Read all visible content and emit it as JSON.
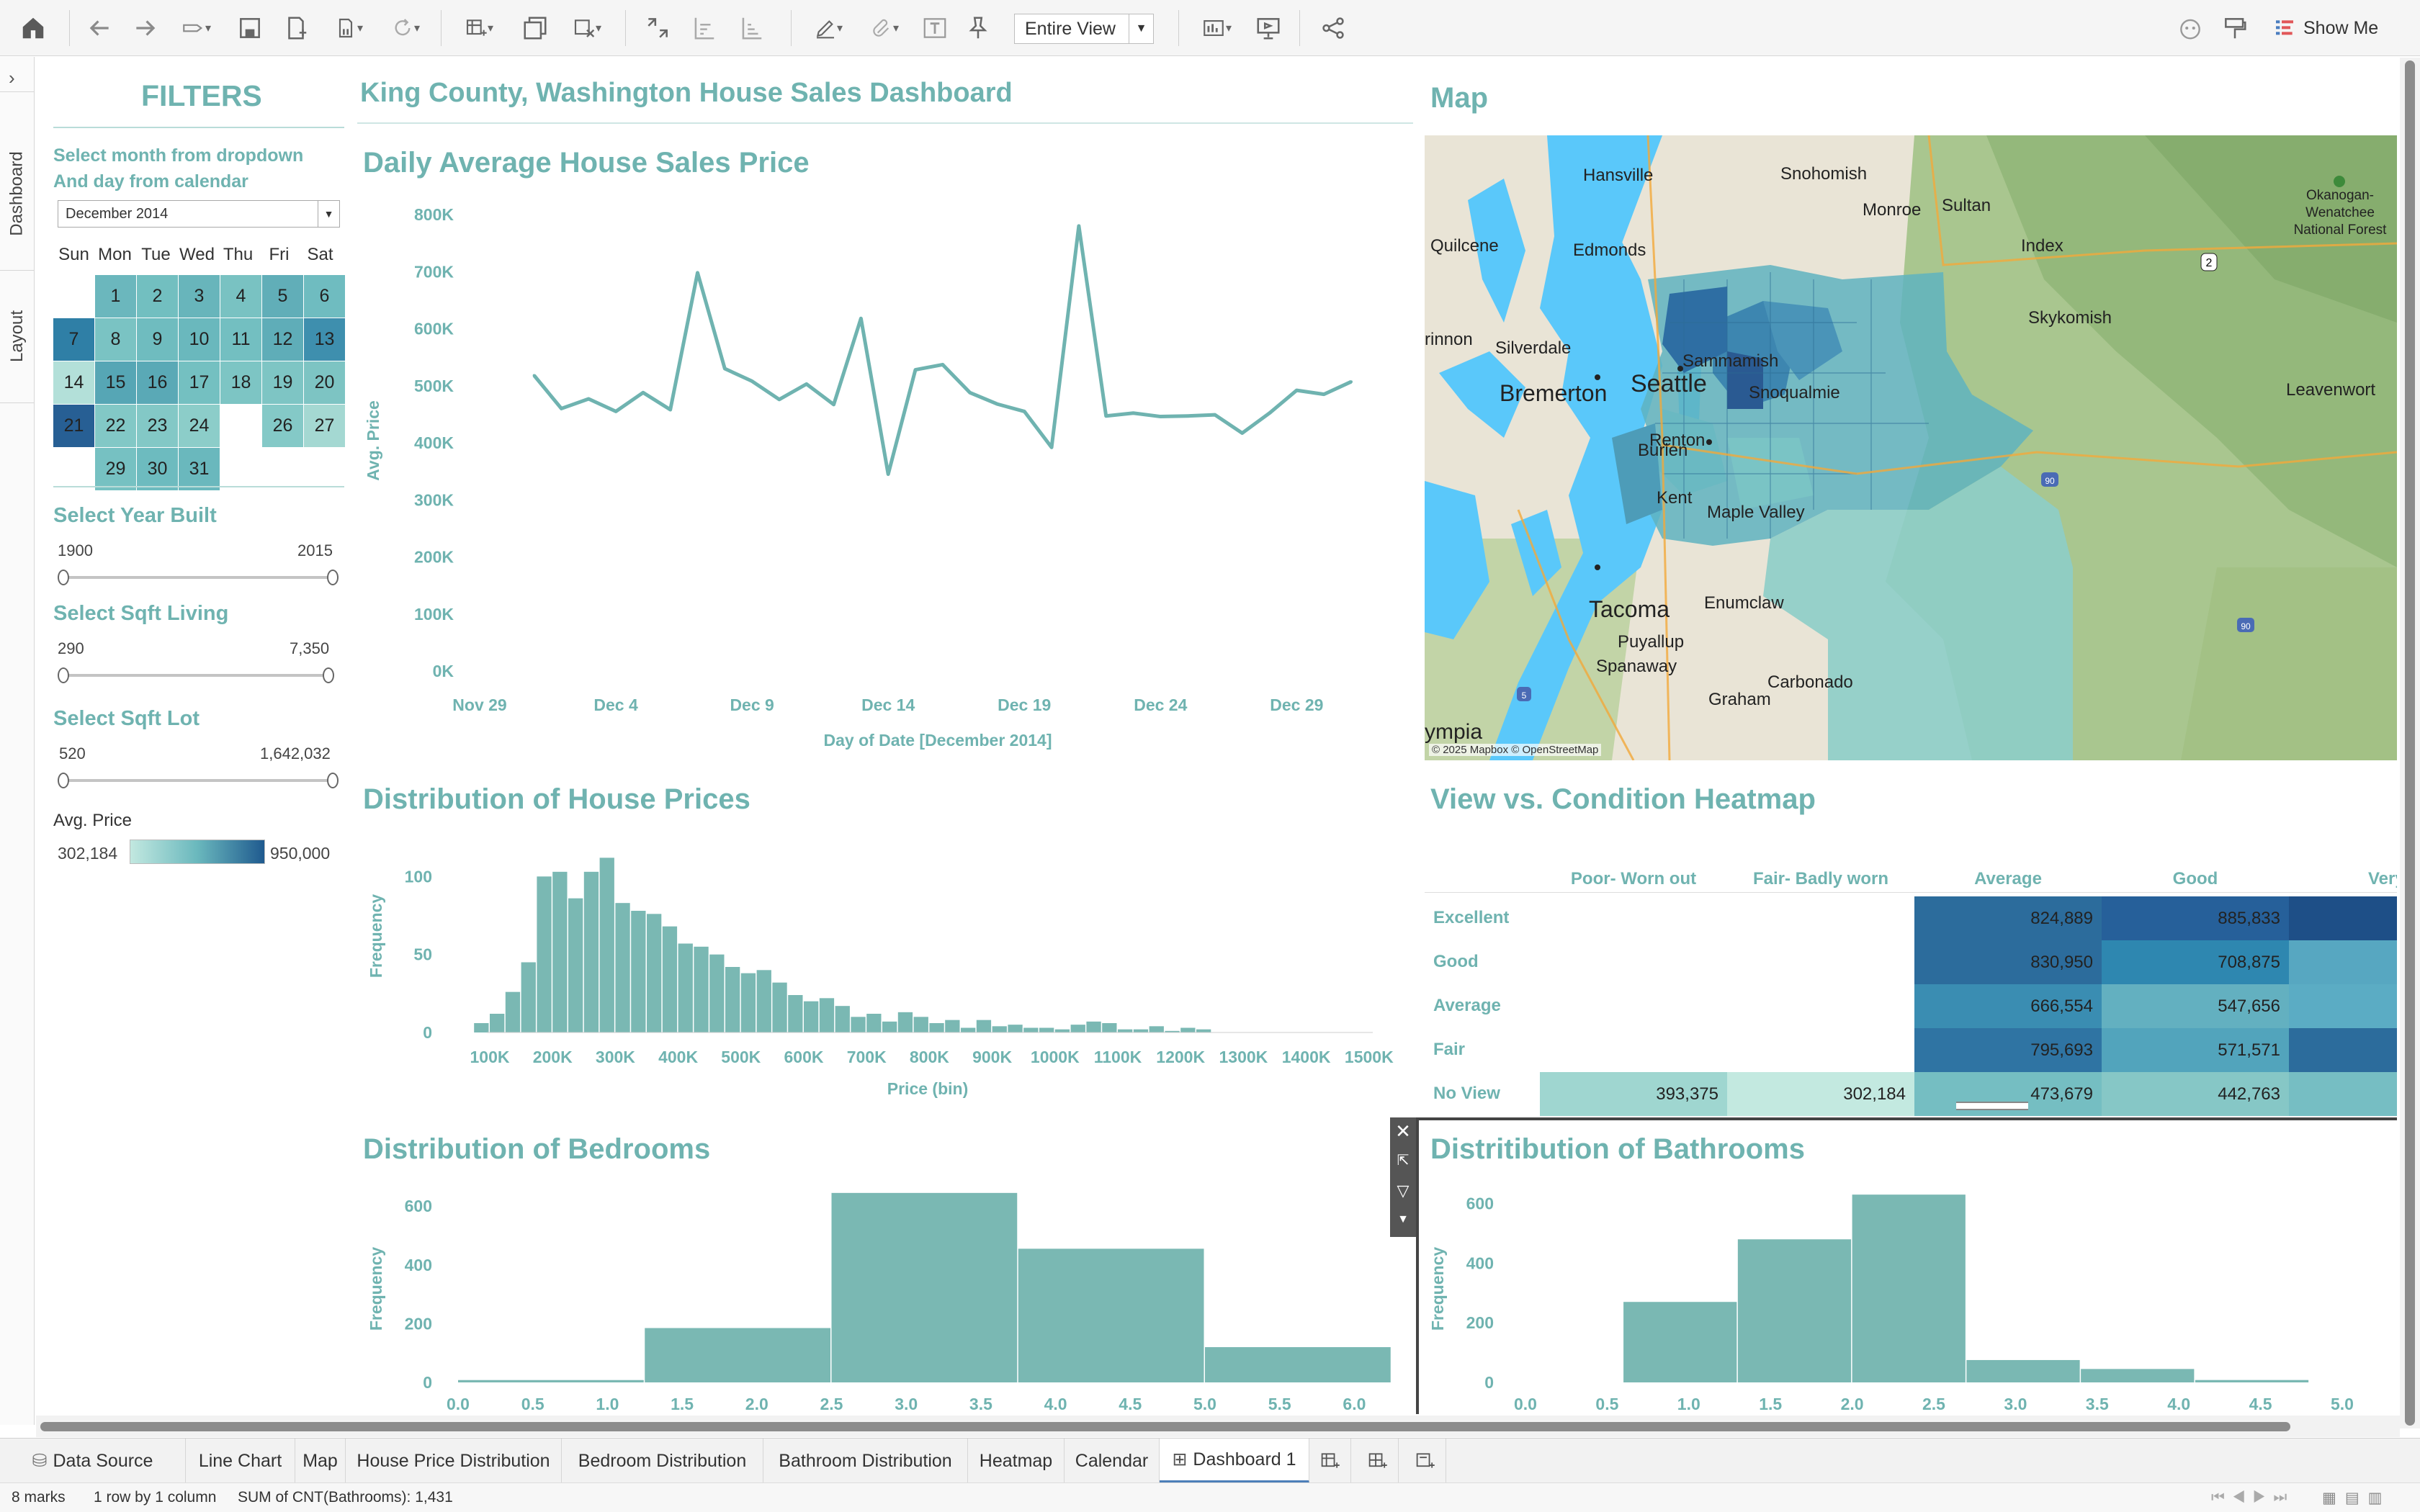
{
  "toolbar": {
    "view_select": "Entire View",
    "show_me": "Show Me"
  },
  "rail": {
    "tabs": [
      "Dashboard",
      "Layout"
    ]
  },
  "filters": {
    "title": "FILTERS",
    "instructions": [
      "Select month from dropdown",
      "And day from calendar"
    ],
    "month_value": "December 2014",
    "calendar": {
      "weekdays": [
        "Sun",
        "Mon",
        "Tue",
        "Wed",
        "Thu",
        "Fri",
        "Sat"
      ],
      "days": [
        {
          "d": "1",
          "col": 1,
          "row": 0,
          "c": "#6bb7bd"
        },
        {
          "d": "2",
          "col": 2,
          "row": 0,
          "c": "#72bfc0"
        },
        {
          "d": "3",
          "col": 3,
          "row": 0,
          "c": "#68b5bb"
        },
        {
          "d": "4",
          "col": 4,
          "row": 0,
          "c": "#79c2c2"
        },
        {
          "d": "5",
          "col": 5,
          "row": 0,
          "c": "#61aeb8"
        },
        {
          "d": "6",
          "col": 6,
          "row": 0,
          "c": "#6fbcc0"
        },
        {
          "d": "7",
          "col": 0,
          "row": 1,
          "c": "#2f7fa6"
        },
        {
          "d": "8",
          "col": 1,
          "row": 1,
          "c": "#7ac3c3"
        },
        {
          "d": "9",
          "col": 2,
          "row": 1,
          "c": "#6fbcbf"
        },
        {
          "d": "10",
          "col": 3,
          "row": 1,
          "c": "#6ab8bd"
        },
        {
          "d": "11",
          "col": 4,
          "row": 1,
          "c": "#73bfc1"
        },
        {
          "d": "12",
          "col": 5,
          "row": 1,
          "c": "#5fadb8"
        },
        {
          "d": "13",
          "col": 6,
          "row": 1,
          "c": "#3e8fae"
        },
        {
          "d": "14",
          "col": 0,
          "row": 2,
          "c": "#b3e0d9"
        },
        {
          "d": "15",
          "col": 1,
          "row": 2,
          "c": "#56a6b5"
        },
        {
          "d": "16",
          "col": 2,
          "row": 2,
          "c": "#5aa9b6"
        },
        {
          "d": "17",
          "col": 3,
          "row": 2,
          "c": "#74c0c1"
        },
        {
          "d": "18",
          "col": 4,
          "row": 2,
          "c": "#7dc5c4"
        },
        {
          "d": "19",
          "col": 5,
          "row": 2,
          "c": "#7ec5c4"
        },
        {
          "d": "20",
          "col": 6,
          "row": 2,
          "c": "#7dc4c3"
        },
        {
          "d": "21",
          "col": 0,
          "row": 3,
          "c": "#275f94"
        },
        {
          "d": "22",
          "col": 1,
          "row": 3,
          "c": "#82c8c6"
        },
        {
          "d": "23",
          "col": 2,
          "row": 3,
          "c": "#83c8c6"
        },
        {
          "d": "24",
          "col": 3,
          "row": 3,
          "c": "#8ccdc9"
        },
        {
          "d": "26",
          "col": 5,
          "row": 3,
          "c": "#84c9c7"
        },
        {
          "d": "27",
          "col": 6,
          "row": 3,
          "c": "#a4d8d2"
        },
        {
          "d": "29",
          "col": 1,
          "row": 4,
          "c": "#76c1c2"
        },
        {
          "d": "30",
          "col": 2,
          "row": 4,
          "c": "#6dbbbf"
        },
        {
          "d": "31",
          "col": 3,
          "row": 4,
          "c": "#6ab8bd"
        }
      ]
    },
    "year_built": {
      "label": "Select Year Built",
      "min": "1900",
      "max": "2015"
    },
    "sqft_living": {
      "label": "Select Sqft Living",
      "min": "290",
      "max": "7,350"
    },
    "sqft_lot": {
      "label": "Select Sqft Lot",
      "min": "520",
      "max": "1,642,032"
    },
    "legend": {
      "label": "Avg. Price",
      "min": "302,184",
      "max": "950,000",
      "color_low": "#c2e8e0",
      "color_high": "#1f5a8f"
    }
  },
  "dashboard_title": "King County, Washington House Sales Dashboard",
  "line_chart": {
    "title": "Daily Average House Sales Price",
    "chart_data": {
      "type": "line",
      "ylabel": "Avg. Price",
      "xlabel": "Day of Date [December 2014]",
      "ylim": [
        0,
        800000
      ],
      "yticks": [
        "0K",
        "100K",
        "200K",
        "300K",
        "400K",
        "500K",
        "600K",
        "700K",
        "800K"
      ],
      "xticks": [
        "Nov 29",
        "Dec 4",
        "Dec 9",
        "Dec 14",
        "Dec 19",
        "Dec 24",
        "Dec 29"
      ],
      "x": [
        "Dec 1",
        "Dec 2",
        "Dec 3",
        "Dec 4",
        "Dec 5",
        "Dec 6",
        "Dec 7",
        "Dec 8",
        "Dec 9",
        "Dec 10",
        "Dec 11",
        "Dec 12",
        "Dec 13",
        "Dec 14",
        "Dec 15",
        "Dec 16",
        "Dec 17",
        "Dec 18",
        "Dec 19",
        "Dec 20",
        "Dec 21",
        "Dec 22",
        "Dec 23",
        "Dec 24",
        "Dec 25",
        "Dec 26",
        "Dec 27",
        "Dec 28",
        "Dec 29",
        "Dec 30",
        "Dec 31"
      ],
      "values": [
        518000,
        460000,
        477000,
        455000,
        488000,
        458000,
        698000,
        530000,
        508000,
        476000,
        503000,
        467000,
        618000,
        345000,
        528000,
        537000,
        488000,
        468000,
        455000,
        392000,
        780000,
        447000,
        452000,
        446000,
        447000,
        449000,
        417000,
        452000,
        492000,
        485000,
        507000
      ],
      "color": "#6fb3b0"
    }
  },
  "map": {
    "title": "Map",
    "labels": [
      "Hansville",
      "Snohomish",
      "Monroe",
      "Sultan",
      "Index",
      "Quilcene",
      "Edmonds",
      "Skykomish",
      "rinnon",
      "Silverdale",
      "Bremerton",
      "Seattle",
      "Sammamish",
      "Snoqualmie",
      "Leavenwort",
      "Burien",
      "Renton",
      "Kent",
      "Maple Valley",
      "Tacoma",
      "Puyallup",
      "Enumclaw",
      "Spanaway",
      "Carbonado",
      "Graham",
      "ympia",
      "Okanogan-Wenatchee National Forest"
    ],
    "attribution": "© 2025 Mapbox © OpenStreetMap"
  },
  "price_hist": {
    "title": "Distribution of House Prices",
    "chart_data": {
      "type": "bar",
      "ylabel": "Frequency",
      "xlabel": "Price (bin)",
      "ylim": [
        0,
        120
      ],
      "yticks": [
        "0",
        "50",
        "100"
      ],
      "xticks": [
        "100K",
        "200K",
        "300K",
        "400K",
        "500K",
        "600K",
        "700K",
        "800K",
        "900K",
        "1000K",
        "1100K",
        "1200K",
        "1300K",
        "1400K",
        "1500K"
      ],
      "bin_start": 75000,
      "bin_width": 25000,
      "values": [
        6,
        12,
        26,
        45,
        100,
        103,
        86,
        103,
        112,
        83,
        78,
        76,
        68,
        57,
        55,
        50,
        42,
        38,
        40,
        32,
        24,
        20,
        22,
        17,
        10,
        12,
        7,
        13,
        10,
        6,
        8,
        3,
        8,
        4,
        5,
        3,
        3,
        2,
        5,
        7,
        6,
        2,
        2,
        4,
        1,
        3,
        2
      ],
      "color": "#7ab8b3"
    }
  },
  "heatmap": {
    "title": "View vs. Condition Heatmap",
    "chart_data": {
      "type": "heatmap",
      "columns": [
        "Poor- Worn out",
        "Fair- Badly worn",
        "Average",
        "Good",
        "Very G"
      ],
      "rows": [
        "Excellent",
        "Good",
        "Average",
        "Fair",
        "No View"
      ],
      "cells": [
        [
          null,
          null,
          {
            "v": "824,889",
            "c": "#2c6c9c"
          },
          {
            "v": "885,833",
            "c": "#26609a"
          },
          {
            "v": "",
            "c": "#1e4f87"
          }
        ],
        [
          null,
          null,
          {
            "v": "830,950",
            "c": "#2c6c9c"
          },
          {
            "v": "708,875",
            "c": "#2e87b0"
          },
          {
            "v": "",
            "c": "#57a7c1"
          }
        ],
        [
          null,
          null,
          {
            "v": "666,554",
            "c": "#3a8db2"
          },
          {
            "v": "547,656",
            "c": "#63b0c0"
          },
          {
            "v": "",
            "c": "#5bacc4"
          }
        ],
        [
          null,
          null,
          {
            "v": "795,693",
            "c": "#2f74a3"
          },
          {
            "v": "571,571",
            "c": "#52a4bc"
          },
          {
            "v": "",
            "c": "#2c6c9c"
          }
        ],
        [
          {
            "v": "393,375",
            "c": "#9fd6d0"
          },
          {
            "v": "302,184",
            "c": "#c3e9e0"
          },
          {
            "v": "473,679",
            "c": "#75bec2"
          },
          {
            "v": "442,763",
            "c": "#86c7c6"
          },
          {
            "v": "",
            "c": "#76bec3"
          }
        ]
      ]
    }
  },
  "bedrooms": {
    "title": "Distribution of Bedrooms",
    "chart_data": {
      "type": "bar",
      "ylabel": "Frequency",
      "ylim": [
        0,
        700
      ],
      "yticks": [
        "0",
        "200",
        "400",
        "600"
      ],
      "xticks": [
        "0.0",
        "0.5",
        "1.0",
        "1.5",
        "2.0",
        "2.5",
        "3.0",
        "3.5",
        "4.0",
        "4.5",
        "5.0",
        "5.5",
        "6.0"
      ],
      "bins": [
        [
          0,
          1.25,
          8
        ],
        [
          1.25,
          2.5,
          185
        ],
        [
          2.5,
          3.75,
          645
        ],
        [
          3.75,
          5.0,
          455
        ],
        [
          5.0,
          6.25,
          120
        ]
      ],
      "color": "#7ab8b3"
    }
  },
  "bathrooms": {
    "title": "Distritibution of Bathrooms",
    "chart_data": {
      "type": "bar",
      "ylabel": "Frequency",
      "ylim": [
        0,
        700
      ],
      "yticks": [
        "0",
        "200",
        "400",
        "600"
      ],
      "xticks": [
        "0.0",
        "0.5",
        "1.0",
        "1.5",
        "2.0",
        "2.5",
        "3.0",
        "3.5",
        "4.0",
        "4.5",
        "5.0"
      ],
      "bins": [
        [
          0.6,
          1.3,
          270
        ],
        [
          1.3,
          2.0,
          480
        ],
        [
          2.0,
          2.7,
          630
        ],
        [
          2.7,
          3.4,
          75
        ],
        [
          3.4,
          4.1,
          45
        ],
        [
          4.1,
          4.8,
          8
        ]
      ],
      "color": "#7ab8b3"
    }
  },
  "tabs": [
    {
      "label": "Data Source",
      "active": false
    },
    {
      "label": "Line Chart",
      "active": false
    },
    {
      "label": "Map",
      "active": false
    },
    {
      "label": "House Price Distribution",
      "active": false
    },
    {
      "label": "Bedroom Distribution",
      "active": false
    },
    {
      "label": "Bathroom Distribution",
      "active": false
    },
    {
      "label": "Heatmap",
      "active": false
    },
    {
      "label": "Calendar",
      "active": false
    },
    {
      "label": "Dashboard 1",
      "active": true
    }
  ],
  "status": {
    "marks": "8 marks",
    "rows": "1 row by 1 column",
    "sum": "SUM of CNT(Bathrooms): 1,431"
  }
}
